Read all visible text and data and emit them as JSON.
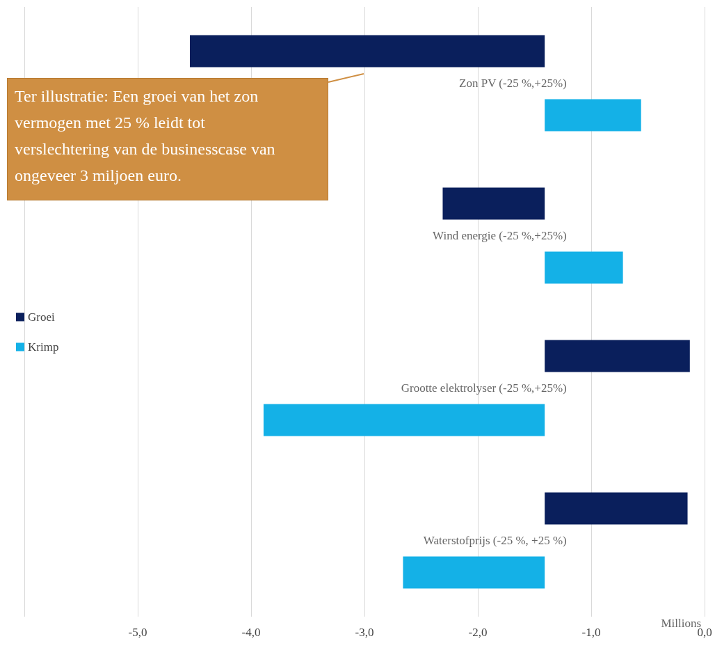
{
  "chart_data": {
    "type": "bar",
    "orientation": "horizontal",
    "xlabel": "Millions",
    "categories": [
      "Zon PV (-25 %,+25%)",
      "Wind energie (-25 %,+25%)",
      "Grootte elektrolyser (-25 %,+25%)",
      "Waterstofprijs (-25 %, +25 %)"
    ],
    "series": [
      {
        "name": "Groei",
        "color": "#0a1f5c",
        "base": [
          -1.41,
          -1.41,
          -1.41,
          -1.41
        ],
        "values": [
          -3.13,
          -0.9,
          1.28,
          1.26
        ]
      },
      {
        "name": "Krimp",
        "color": "#14b1e7",
        "base": [
          -1.41,
          -1.41,
          -1.41,
          -1.41
        ],
        "values": [
          0.85,
          0.69,
          -2.48,
          -1.25
        ]
      }
    ],
    "xlim": [
      -6,
      0
    ],
    "xticks": [
      {
        "value": -6,
        "label": null
      },
      {
        "value": -5,
        "label": "-5,0"
      },
      {
        "value": -4,
        "label": "-4,0"
      },
      {
        "value": -3,
        "label": "-3,0"
      },
      {
        "value": -2,
        "label": "-2,0"
      },
      {
        "value": -1,
        "label": "-1,0"
      },
      {
        "value": 0,
        "label": "0,0"
      }
    ],
    "grid": "x",
    "legend": "left",
    "annotations": [
      "Ter illustratie: Een groei van het zon vermogen met 25 % leidt tot verslechtering van de businesscase van ongeveer 3 miljoen euro."
    ]
  }
}
